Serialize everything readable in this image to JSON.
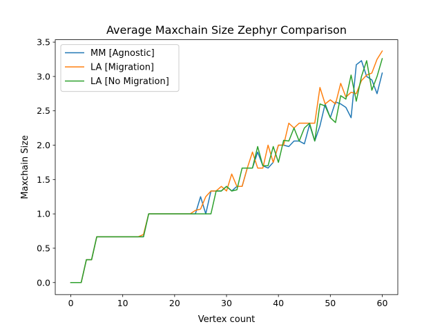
{
  "chart_data": {
    "type": "line",
    "title": "Average Maxchain Size Zephyr Comparison",
    "xlabel": "Vertex count",
    "ylabel": "Maxchain Size",
    "xlim": [
      -3,
      63
    ],
    "ylim": [
      -0.175,
      3.535
    ],
    "xticks": [
      0,
      10,
      20,
      30,
      40,
      50,
      60
    ],
    "yticks": [
      0.0,
      0.5,
      1.0,
      1.5,
      2.0,
      2.5,
      3.0,
      3.5
    ],
    "xtick_labels": [
      "0",
      "10",
      "20",
      "30",
      "40",
      "50",
      "60"
    ],
    "ytick_labels": [
      "0.0",
      "0.5",
      "1.0",
      "1.5",
      "2.0",
      "2.5",
      "3.0",
      "3.5"
    ],
    "grid": false,
    "legend_position": "top-left",
    "x": [
      0,
      1,
      2,
      3,
      4,
      5,
      6,
      7,
      8,
      9,
      10,
      11,
      12,
      13,
      14,
      15,
      16,
      17,
      18,
      19,
      20,
      21,
      22,
      23,
      24,
      25,
      26,
      27,
      28,
      29,
      30,
      31,
      32,
      33,
      34,
      35,
      36,
      37,
      38,
      39,
      40,
      41,
      42,
      43,
      44,
      45,
      46,
      47,
      48,
      49,
      50,
      51,
      52,
      53,
      54,
      55,
      56,
      57,
      58,
      59,
      60
    ],
    "series": [
      {
        "name": "MM [Agnostic]",
        "color": "#1f77b4",
        "values": [
          0,
          0,
          0,
          0.333,
          0.333,
          0.667,
          0.667,
          0.667,
          0.667,
          0.667,
          0.667,
          0.667,
          0.667,
          0.667,
          0.667,
          1.0,
          1.0,
          1.0,
          1.0,
          1.0,
          1.0,
          1.0,
          1.0,
          1.0,
          1.0,
          1.25,
          1.0,
          1.333,
          1.333,
          1.333,
          1.4,
          1.333,
          1.4,
          1.4,
          1.667,
          1.667,
          1.9,
          1.7,
          1.667,
          1.75,
          2.0,
          2.0,
          1.98,
          2.06,
          2.06,
          2.02,
          2.3,
          2.06,
          2.28,
          2.6,
          2.4,
          2.63,
          2.6,
          2.55,
          2.4,
          3.17,
          3.23,
          3.0,
          2.95,
          2.75,
          3.05
        ]
      },
      {
        "name": "LA [Migration]",
        "color": "#ff7f0e",
        "values": [
          0,
          0,
          0,
          0.333,
          0.333,
          0.667,
          0.667,
          0.667,
          0.667,
          0.667,
          0.667,
          0.667,
          0.667,
          0.667,
          0.7,
          1.0,
          1.0,
          1.0,
          1.0,
          1.0,
          1.0,
          1.0,
          1.0,
          1.0,
          1.05,
          1.07,
          1.25,
          1.333,
          1.333,
          1.4,
          1.333,
          1.58,
          1.4,
          1.4,
          1.667,
          1.9,
          1.667,
          1.667,
          2.0,
          1.75,
          2.0,
          2.0,
          2.32,
          2.25,
          2.32,
          2.32,
          2.32,
          2.32,
          2.84,
          2.6,
          2.66,
          2.6,
          2.9,
          2.7,
          2.77,
          2.75,
          2.94,
          3.02,
          3.05,
          3.25,
          3.37
        ]
      },
      {
        "name": "LA [No Migration]",
        "color": "#2ca02c",
        "values": [
          0,
          0,
          0,
          0.333,
          0.333,
          0.667,
          0.667,
          0.667,
          0.667,
          0.667,
          0.667,
          0.667,
          0.667,
          0.667,
          0.667,
          1.0,
          1.0,
          1.0,
          1.0,
          1.0,
          1.0,
          1.0,
          1.0,
          1.0,
          1.0,
          1.0,
          1.0,
          1.0,
          1.333,
          1.333,
          1.4,
          1.333,
          1.35,
          1.667,
          1.667,
          1.667,
          1.98,
          1.7,
          1.7,
          1.98,
          1.75,
          2.07,
          2.06,
          2.25,
          2.06,
          2.25,
          2.32,
          2.06,
          2.6,
          2.57,
          2.4,
          2.33,
          2.72,
          2.67,
          3.02,
          2.64,
          3.0,
          3.23,
          2.8,
          3.0,
          3.26
        ]
      }
    ]
  }
}
